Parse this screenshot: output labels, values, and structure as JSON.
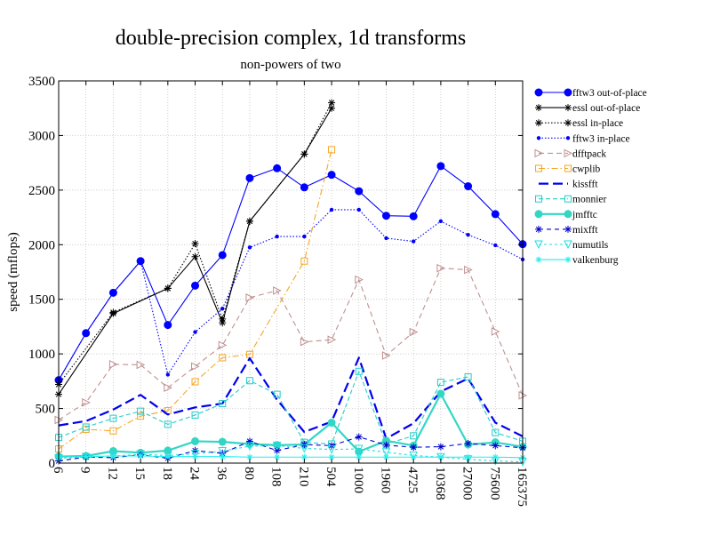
{
  "chart_data": {
    "type": "line",
    "title": "double-precision complex, 1d transforms",
    "subtitle": "non-powers of two",
    "xlabel": "",
    "ylabel": "speed (mflops)",
    "ylim": [
      0,
      3500
    ],
    "yticks": [
      0,
      500,
      1000,
      1500,
      2000,
      2500,
      3000,
      3500
    ],
    "grid": true,
    "legend_position": "right",
    "categories": [
      "6",
      "9",
      "12",
      "15",
      "18",
      "24",
      "36",
      "80",
      "108",
      "210",
      "504",
      "1000",
      "1960",
      "4725",
      "10368",
      "27000",
      "75600",
      "165375"
    ],
    "series": [
      {
        "name": "fftw3 out-of-place",
        "color": "#0000ff",
        "dash": "",
        "marker": "circle-filled",
        "size": 4,
        "width": 1.1,
        "values": [
          760,
          1190,
          1560,
          1850,
          1265,
          1625,
          1905,
          2610,
          2700,
          2525,
          2640,
          2490,
          2265,
          2260,
          2720,
          2535,
          2280,
          2005
        ]
      },
      {
        "name": "essl out-of-place",
        "color": "#000000",
        "dash": "",
        "marker": "star",
        "size": 4,
        "width": 1.1,
        "values": [
          630,
          null,
          1370,
          null,
          1600,
          1890,
          1285,
          2215,
          null,
          2830,
          3250,
          null,
          null,
          null,
          null,
          null,
          null,
          null
        ]
      },
      {
        "name": "essl in-place",
        "color": "#000000",
        "dash": "1.5 2",
        "marker": "star",
        "size": 4,
        "width": 1.1,
        "values": [
          720,
          null,
          1380,
          null,
          1600,
          2010,
          1320,
          2215,
          null,
          2830,
          3300,
          null,
          null,
          null,
          null,
          null,
          null,
          null
        ]
      },
      {
        "name": "fftw3 in-place",
        "color": "#0000ff",
        "dash": "1.5 2",
        "marker": "dot",
        "size": 2.2,
        "width": 1.1,
        "values": [
          760,
          1190,
          1560,
          1850,
          810,
          1200,
          1415,
          1975,
          2075,
          2075,
          2320,
          2320,
          2060,
          2030,
          2215,
          2090,
          1995,
          1865
        ]
      },
      {
        "name": "dfftpack",
        "color": "#c09090",
        "dash": "6 4",
        "marker": "triangle-right",
        "size": 4,
        "width": 1.1,
        "values": [
          395,
          555,
          905,
          900,
          690,
          885,
          1080,
          1515,
          1580,
          1110,
          1130,
          1680,
          985,
          1200,
          1785,
          1770,
          1205,
          620
        ]
      },
      {
        "name": "cwplib",
        "color": "#f5a623",
        "dash": "7 3 1.5 3",
        "marker": "square",
        "size": 3.5,
        "width": 1.1,
        "values": [
          130,
          310,
          295,
          430,
          480,
          745,
          965,
          995,
          null,
          1850,
          2870,
          null,
          null,
          null,
          null,
          null,
          null,
          null
        ]
      },
      {
        "name": "kissfft",
        "color": "#0000ee",
        "dash": "11 5",
        "marker": "none",
        "size": 0,
        "width": 2.2,
        "values": [
          345,
          385,
          490,
          625,
          445,
          510,
          545,
          960,
          580,
          285,
          380,
          965,
          225,
          365,
          655,
          775,
          370,
          245
        ]
      },
      {
        "name": "monnier",
        "color": "#22cccc",
        "dash": "5 3",
        "marker": "square",
        "size": 3.5,
        "width": 1.1,
        "values": [
          235,
          330,
          410,
          475,
          355,
          440,
          545,
          755,
          630,
          190,
          175,
          840,
          175,
          250,
          740,
          790,
          280,
          200
        ]
      },
      {
        "name": "jmfftc",
        "color": "#33d6c4",
        "dash": "",
        "marker": "circle-filled",
        "size": 4,
        "width": 2.2,
        "values": [
          60,
          65,
          110,
          95,
          115,
          200,
          195,
          175,
          165,
          170,
          370,
          105,
          205,
          160,
          635,
          170,
          190,
          150
        ]
      },
      {
        "name": "mixfft",
        "color": "#0000cc",
        "dash": "5 4",
        "marker": "star",
        "size": 4,
        "width": 1.1,
        "values": [
          20,
          55,
          50,
          75,
          45,
          115,
          90,
          200,
          115,
          170,
          160,
          240,
          165,
          145,
          150,
          180,
          160,
          140
        ]
      },
      {
        "name": "numutils",
        "color": "#22dddd",
        "dash": "3 3",
        "marker": "triangle-down",
        "size": 4,
        "width": 1.1,
        "values": [
          45,
          55,
          65,
          80,
          70,
          85,
          110,
          155,
          160,
          135,
          125,
          130,
          100,
          70,
          55,
          35,
          20,
          10
        ]
      },
      {
        "name": "valkenburg",
        "color": "#22eeee",
        "dash": "",
        "marker": "star",
        "size": 3.5,
        "width": 1.1,
        "values": [
          55,
          60,
          65,
          65,
          60,
          60,
          60,
          55,
          55,
          55,
          55,
          55,
          55,
          55,
          55,
          55,
          55,
          50
        ]
      }
    ]
  }
}
